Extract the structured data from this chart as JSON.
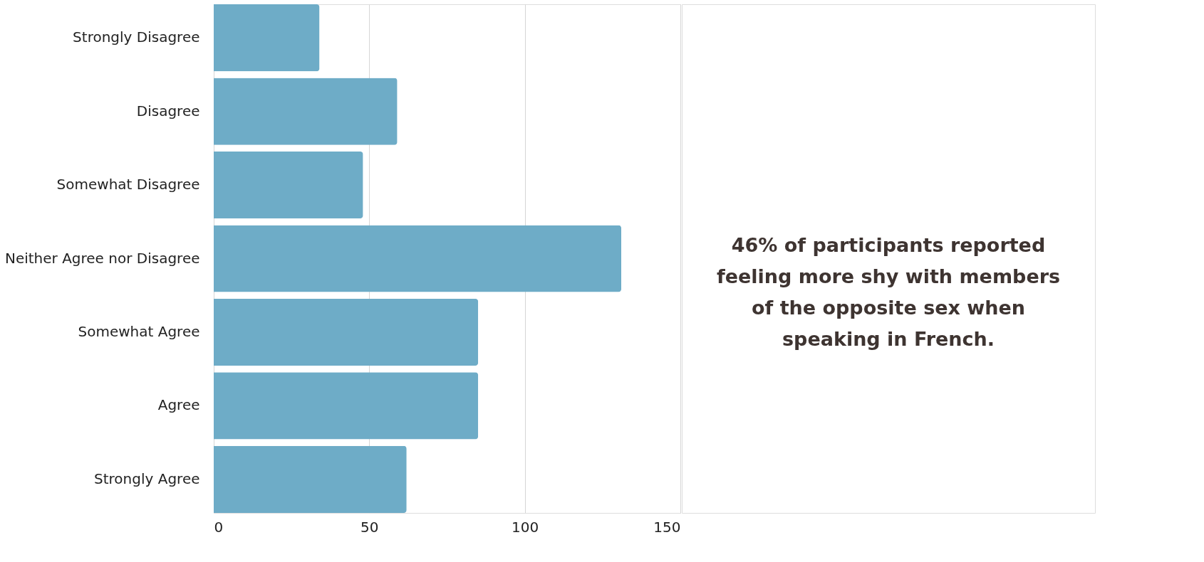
{
  "chart_data": {
    "type": "bar",
    "orientation": "horizontal",
    "categories": [
      "Strongly Disagree",
      "Disagree",
      "Somewhat Disagree",
      "Neither Agree nor Disagree",
      "Somewhat Agree",
      "Agree",
      "Strongly Agree"
    ],
    "values": [
      34,
      59,
      48,
      131,
      85,
      85,
      62
    ],
    "color": "#6eacc7",
    "xlim": [
      0,
      150
    ],
    "xticks": [
      0,
      50,
      100,
      150
    ],
    "grid": "x",
    "annotations": [
      "46% of participants reported\nfeeling more shy with members\nof the opposite sex when\nspeaking in French."
    ]
  }
}
